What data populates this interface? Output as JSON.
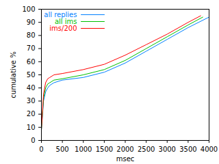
{
  "chart_data": {
    "type": "line",
    "x_label": "msec",
    "y_label": "cumulative %",
    "xlim": [
      0,
      4000
    ],
    "ylim": [
      0,
      100
    ],
    "xticks": [
      0,
      500,
      1000,
      1500,
      2000,
      2500,
      3000,
      3500,
      4000
    ],
    "yticks": [
      0,
      10,
      20,
      30,
      40,
      50,
      60,
      70,
      80,
      90,
      100
    ],
    "grid": false,
    "legend": "top-left",
    "series": [
      {
        "name": "all replies",
        "color": "#0080ff",
        "x": [
          0,
          50,
          100,
          150,
          200,
          300,
          500,
          1000,
          1500,
          2000,
          2500,
          3000,
          3500,
          4000
        ],
        "values": [
          8,
          30,
          37,
          40,
          42,
          44,
          46,
          48,
          52,
          59,
          68,
          77,
          86,
          94
        ]
      },
      {
        "name": "all ims",
        "color": "#00c000",
        "x": [
          0,
          50,
          100,
          150,
          200,
          300,
          500,
          1000,
          1500,
          2000,
          2500,
          3000,
          3500,
          3850
        ],
        "values": [
          8,
          32,
          40,
          43,
          44,
          46,
          47,
          50,
          54,
          61,
          70,
          79,
          88,
          94
        ]
      },
      {
        "name": "ims/200",
        "color": "#ff0000",
        "x": [
          0,
          50,
          100,
          150,
          200,
          300,
          500,
          1000,
          1500,
          2000,
          2500,
          3000,
          3500,
          3800
        ],
        "values": [
          8,
          35,
          44,
          47,
          48,
          50,
          51,
          54,
          58,
          65,
          73,
          81,
          90,
          95
        ]
      }
    ]
  }
}
